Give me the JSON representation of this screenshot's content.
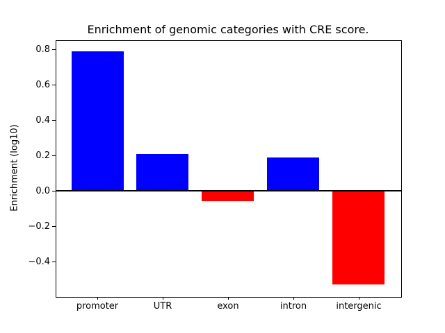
{
  "figure": {
    "title": "Enrichment of genomic categories with CRE score.",
    "ylabel": "Enrichment (log10)"
  },
  "chart_data": {
    "type": "bar",
    "title": "Enrichment of genomic categories with CRE score.",
    "xlabel": "",
    "ylabel": "Enrichment (log10)",
    "categories": [
      "promoter",
      "UTR",
      "exon",
      "intron",
      "intergenic"
    ],
    "values": [
      0.79,
      0.21,
      -0.06,
      0.19,
      -0.53
    ],
    "bar_colors": [
      "#0000ff",
      "#0000ff",
      "#ff0000",
      "#0000ff",
      "#ff0000"
    ],
    "positive_color": "#0000ff",
    "negative_color": "#ff0000",
    "yticks": [
      0.8,
      0.6,
      0.4,
      0.2,
      0.0,
      -0.2,
      -0.4
    ],
    "ylim": [
      -0.596,
      0.852
    ],
    "xlim": [
      -0.64,
      4.64
    ],
    "bar_width": 0.8,
    "zero_line": true,
    "zero_line_color": "#000000",
    "grid": false,
    "legend": null,
    "background": "#ffffff",
    "axes_edge_color": "#000000"
  }
}
